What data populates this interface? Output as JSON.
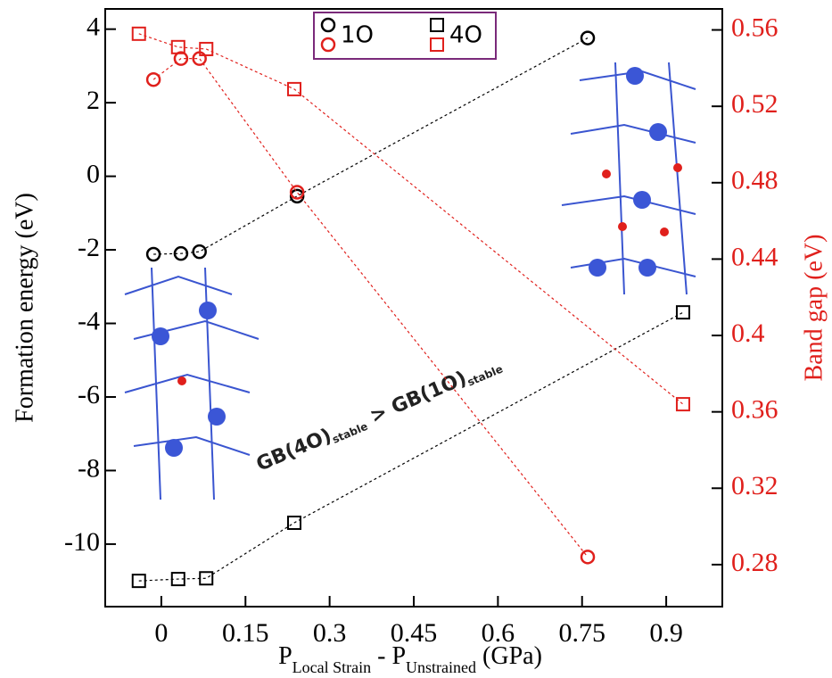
{
  "chart_data": {
    "type": "scatter",
    "ylabel": "Formation energy (eV)",
    "y2label": "Band gap (eV)",
    "xlabel_parts": [
      "P",
      "Local Strain",
      " - P",
      "Unstrained",
      " (GPa)"
    ],
    "annotation_parts": [
      "GB(4O)",
      "stable",
      " > GB(1O)",
      "stable"
    ],
    "xlim": [
      -0.1,
      1.0
    ],
    "xticks": [
      0,
      0.15,
      0.3,
      0.45,
      0.6,
      0.75,
      0.9
    ],
    "ylim": [
      -11.7,
      4.55
    ],
    "yticks": [
      -10,
      -8,
      -6,
      -4,
      -2,
      0,
      2,
      4
    ],
    "y2lim": [
      0.258,
      0.571
    ],
    "y2ticks": [
      0.28,
      0.32,
      0.36,
      0.4,
      0.44,
      0.48,
      0.52,
      0.56
    ],
    "series": [
      {
        "name": "1O",
        "color": "#000000",
        "marker": "circle",
        "axis": "y",
        "x": [
          -0.014,
          0.035,
          0.068,
          0.242,
          0.76
        ],
        "values": [
          -2.12,
          -2.1,
          -2.05,
          -0.54,
          3.76
        ]
      },
      {
        "name": "4O",
        "color": "#000000",
        "marker": "square",
        "axis": "y",
        "x": [
          -0.04,
          0.03,
          0.08,
          0.237,
          0.93
        ],
        "values": [
          -11.0,
          -10.95,
          -10.93,
          -9.42,
          -3.7
        ]
      },
      {
        "color": "#e0201c",
        "marker": "circle",
        "axis": "y2",
        "x": [
          -0.014,
          0.035,
          0.068,
          0.242,
          0.76
        ],
        "values": [
          0.534,
          0.545,
          0.545,
          0.475,
          0.284
        ]
      },
      {
        "color": "#e0201c",
        "marker": "square",
        "axis": "y2",
        "x": [
          -0.04,
          0.03,
          0.08,
          0.237,
          0.93
        ],
        "values": [
          0.558,
          0.551,
          0.55,
          0.529,
          0.364
        ]
      }
    ]
  }
}
